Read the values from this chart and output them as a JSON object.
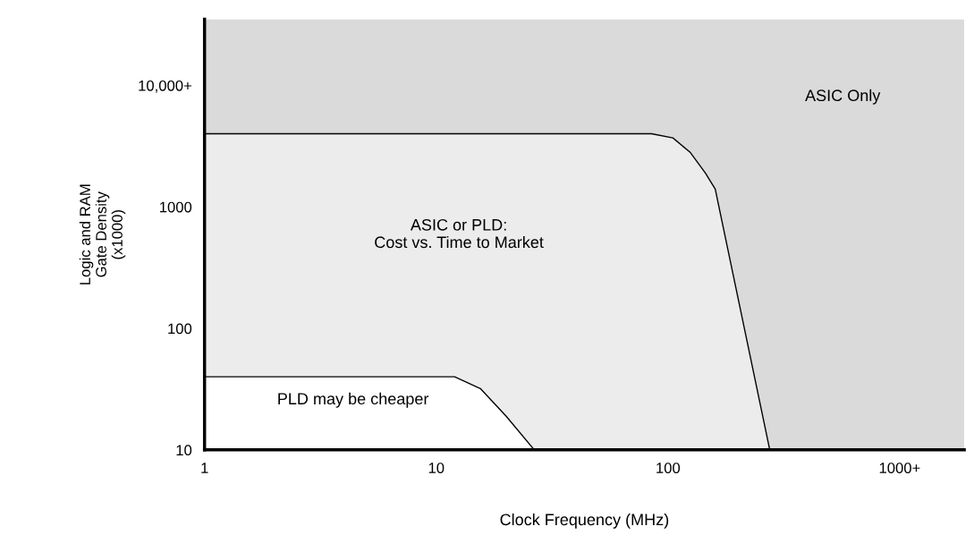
{
  "chart_data": {
    "type": "area",
    "log": "xy",
    "xlabel": "Clock Frequency (MHz)",
    "ylabel": "Logic and RAM\nGate Density\n(x1000)",
    "xlim": [
      1,
      1900
    ],
    "ylim": [
      10,
      35000
    ],
    "xticks": [
      1,
      10,
      100,
      {
        "value": 1000,
        "label": "1000+"
      }
    ],
    "yticks": [
      10,
      100,
      1000,
      {
        "value": 10000,
        "label": "10,000+"
      }
    ],
    "bands": [
      {
        "axis": "y",
        "from": 10,
        "to": 35000,
        "label": "ASIC Only",
        "color": "#dadada"
      }
    ],
    "series": [
      {
        "name": "ASIC or PLD:\nCost vs. Time to Market",
        "color": "#ececec",
        "x": [
          1,
          85,
          105,
          125,
          145,
          160,
          275
        ],
        "values": [
          4000,
          4000,
          3700,
          2800,
          1900,
          1400,
          10
        ]
      },
      {
        "name": "PLD may be cheaper",
        "color": "#ffffff",
        "x": [
          1,
          12,
          15.5,
          20,
          26.5
        ],
        "values": [
          40,
          40,
          32,
          19,
          10
        ]
      }
    ]
  }
}
